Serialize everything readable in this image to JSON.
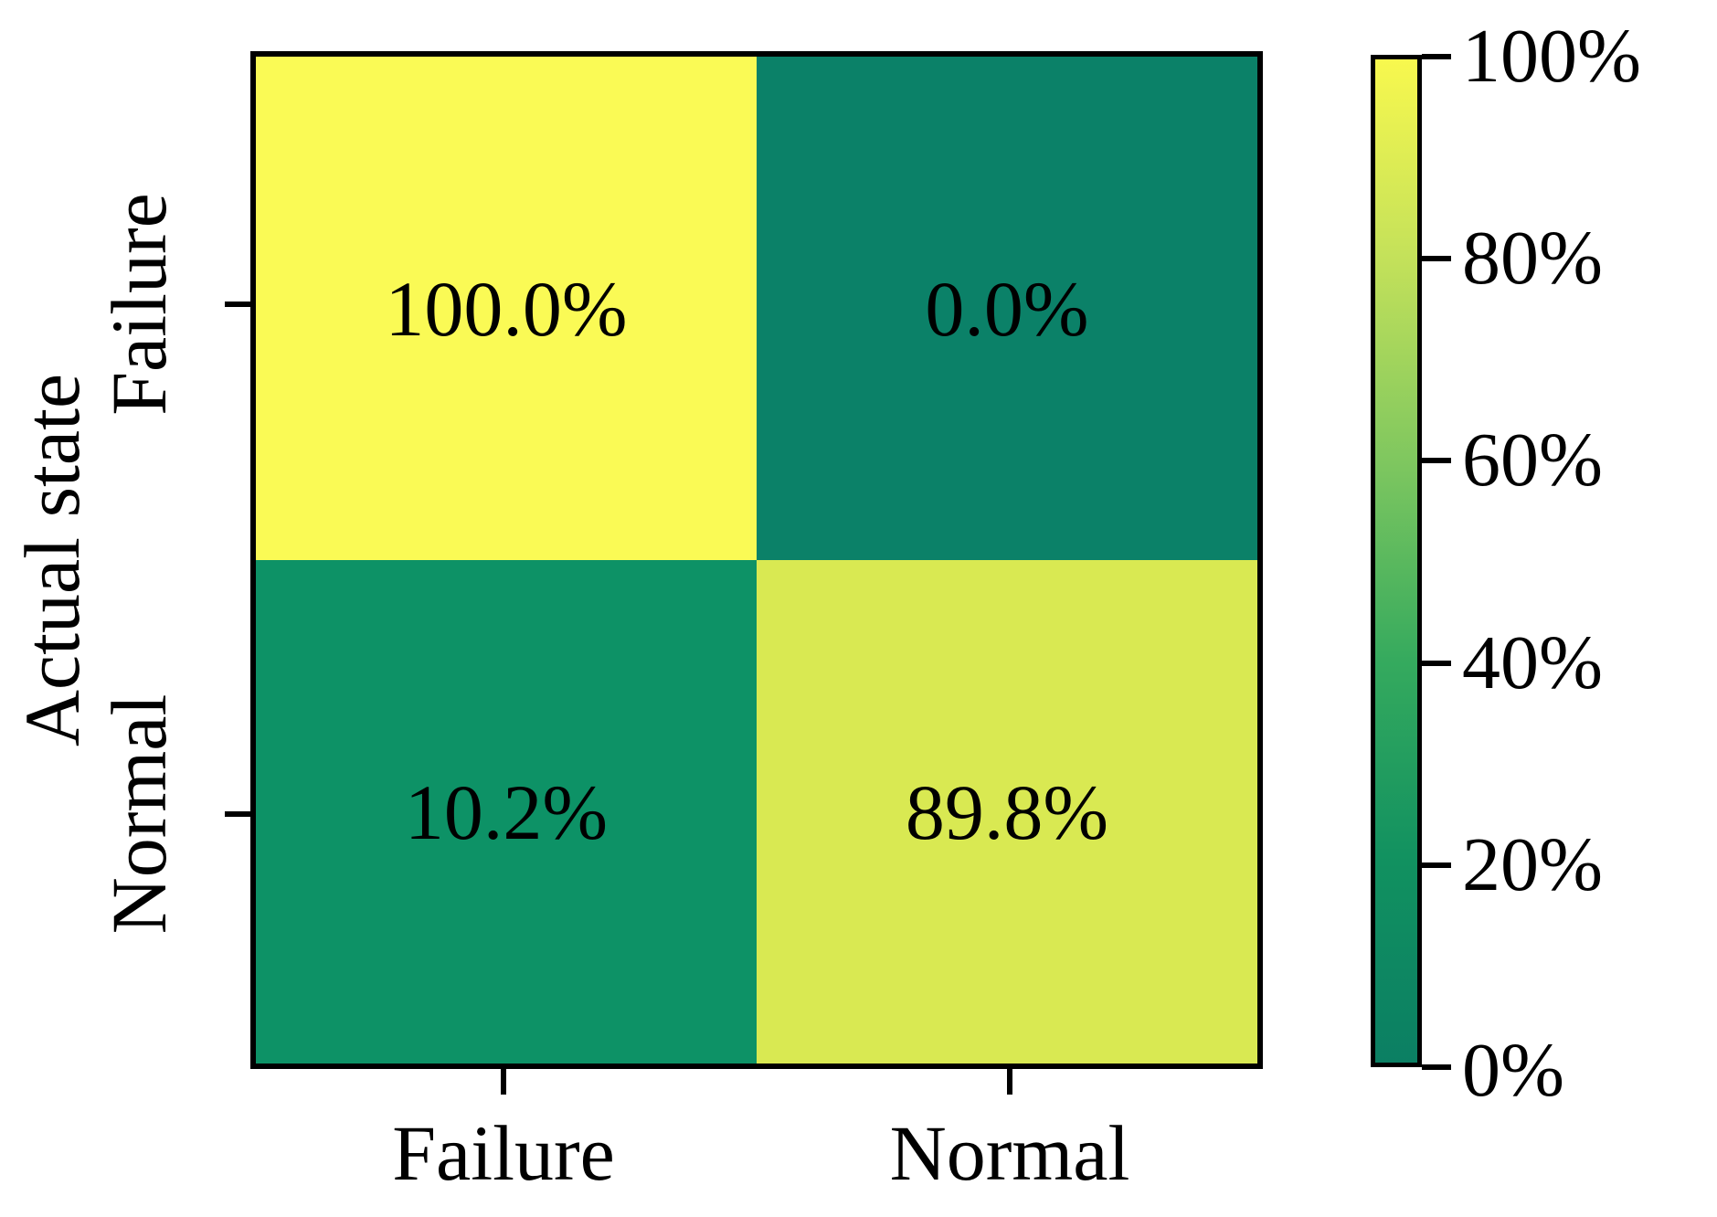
{
  "chart_data": {
    "type": "heatmap",
    "title": "",
    "ylabel": "Actual state",
    "x_categories": [
      "Failure",
      "Normal"
    ],
    "y_categories": [
      "Failure",
      "Normal"
    ],
    "values_percent": [
      [
        100.0,
        0.0
      ],
      [
        10.2,
        89.8
      ]
    ],
    "cells": [
      {
        "row": "Failure",
        "col": "Failure",
        "value": 100.0,
        "label": "100.0%",
        "color": "#fafa55"
      },
      {
        "row": "Failure",
        "col": "Normal",
        "value": 0.0,
        "label": "0.0%",
        "color": "#0b8168"
      },
      {
        "row": "Normal",
        "col": "Failure",
        "value": 10.2,
        "label": "10.2%",
        "color": "#0d9266"
      },
      {
        "row": "Normal",
        "col": "Normal",
        "value": 89.8,
        "label": "89.8%",
        "color": "#d9e952"
      }
    ],
    "colorbar": {
      "tick_labels": [
        "100%",
        "80%",
        "60%",
        "40%",
        "20%",
        "0%"
      ],
      "range": [
        0,
        100
      ],
      "gradient_top_to_bottom": [
        "#f8f84e",
        "#c3e15a",
        "#7fc75f",
        "#35aa5e",
        "#119160",
        "#0b7f63"
      ],
      "colormap": "summer (dark green to yellow)"
    },
    "layout": {
      "grid": false,
      "legend": "colorbar-right"
    },
    "annotation_color": "#000000",
    "axis_color": "#000000"
  }
}
